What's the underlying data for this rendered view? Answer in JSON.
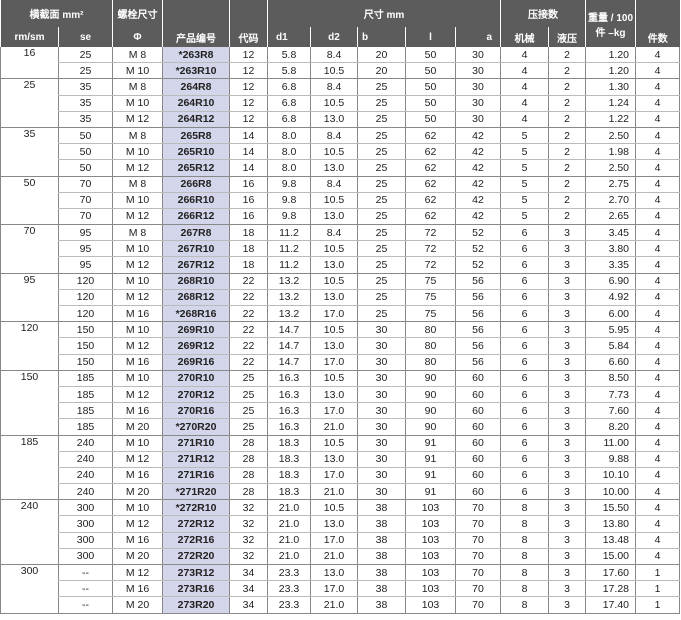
{
  "header": {
    "cross_section": "横截面 mm²",
    "bolt": "螺栓尺寸",
    "dims": "尺寸 mm",
    "crimps": "压接数",
    "weight": "重量 / 100 件 –kg",
    "mm_sm": "rm/sm",
    "se": "se",
    "phi": "Φ",
    "product_no": "产品编号",
    "code": "代码",
    "d1": "d1",
    "d2": "d2",
    "b": "b",
    "l": "l",
    "a": "a",
    "mech": "机械",
    "hydr": "液压",
    "pieces": "件数"
  },
  "groups": [
    {
      "mm": "16",
      "rows": [
        [
          "25",
          "M 8",
          "*263R8",
          "12",
          "5.8",
          "8.4",
          "20",
          "50",
          "30",
          "4",
          "2",
          "1.20",
          "4"
        ],
        [
          "25",
          "M 10",
          "*263R10",
          "12",
          "5.8",
          "10.5",
          "20",
          "50",
          "30",
          "4",
          "2",
          "1.20",
          "4"
        ]
      ]
    },
    {
      "mm": "25",
      "rows": [
        [
          "35",
          "M 8",
          "264R8",
          "12",
          "6.8",
          "8.4",
          "25",
          "50",
          "30",
          "4",
          "2",
          "1.30",
          "4"
        ],
        [
          "35",
          "M 10",
          "264R10",
          "12",
          "6.8",
          "10.5",
          "25",
          "50",
          "30",
          "4",
          "2",
          "1.24",
          "4"
        ],
        [
          "35",
          "M 12",
          "264R12",
          "12",
          "6.8",
          "13.0",
          "25",
          "50",
          "30",
          "4",
          "2",
          "1.22",
          "4"
        ]
      ]
    },
    {
      "mm": "35",
      "rows": [
        [
          "50",
          "M 8",
          "265R8",
          "14",
          "8.0",
          "8.4",
          "25",
          "62",
          "42",
          "5",
          "2",
          "2.50",
          "4"
        ],
        [
          "50",
          "M 10",
          "265R10",
          "14",
          "8.0",
          "10.5",
          "25",
          "62",
          "42",
          "5",
          "2",
          "1.98",
          "4"
        ],
        [
          "50",
          "M 12",
          "265R12",
          "14",
          "8.0",
          "13.0",
          "25",
          "62",
          "42",
          "5",
          "2",
          "2.50",
          "4"
        ]
      ]
    },
    {
      "mm": "50",
      "rows": [
        [
          "70",
          "M 8",
          "266R8",
          "16",
          "9.8",
          "8.4",
          "25",
          "62",
          "42",
          "5",
          "2",
          "2.75",
          "4"
        ],
        [
          "70",
          "M 10",
          "266R10",
          "16",
          "9.8",
          "10.5",
          "25",
          "62",
          "42",
          "5",
          "2",
          "2.70",
          "4"
        ],
        [
          "70",
          "M 12",
          "266R12",
          "16",
          "9.8",
          "13.0",
          "25",
          "62",
          "42",
          "5",
          "2",
          "2.65",
          "4"
        ]
      ]
    },
    {
      "mm": "70",
      "rows": [
        [
          "95",
          "M 8",
          "267R8",
          "18",
          "11.2",
          "8.4",
          "25",
          "72",
          "52",
          "6",
          "3",
          "3.45",
          "4"
        ],
        [
          "95",
          "M 10",
          "267R10",
          "18",
          "11.2",
          "10.5",
          "25",
          "72",
          "52",
          "6",
          "3",
          "3.80",
          "4"
        ],
        [
          "95",
          "M 12",
          "267R12",
          "18",
          "11.2",
          "13.0",
          "25",
          "72",
          "52",
          "6",
          "3",
          "3.35",
          "4"
        ]
      ]
    },
    {
      "mm": "95",
      "rows": [
        [
          "120",
          "M 10",
          "268R10",
          "22",
          "13.2",
          "10.5",
          "25",
          "75",
          "56",
          "6",
          "3",
          "6.90",
          "4"
        ],
        [
          "120",
          "M 12",
          "268R12",
          "22",
          "13.2",
          "13.0",
          "25",
          "75",
          "56",
          "6",
          "3",
          "4.92",
          "4"
        ],
        [
          "120",
          "M 16",
          "*268R16",
          "22",
          "13.2",
          "17.0",
          "25",
          "75",
          "56",
          "6",
          "3",
          "6.00",
          "4"
        ]
      ]
    },
    {
      "mm": "120",
      "rows": [
        [
          "150",
          "M 10",
          "269R10",
          "22",
          "14.7",
          "10.5",
          "30",
          "80",
          "56",
          "6",
          "3",
          "5.95",
          "4"
        ],
        [
          "150",
          "M 12",
          "269R12",
          "22",
          "14.7",
          "13.0",
          "30",
          "80",
          "56",
          "6",
          "3",
          "5.84",
          "4"
        ],
        [
          "150",
          "M 16",
          "269R16",
          "22",
          "14.7",
          "17.0",
          "30",
          "80",
          "56",
          "6",
          "3",
          "6.60",
          "4"
        ]
      ]
    },
    {
      "mm": "150",
      "rows": [
        [
          "185",
          "M 10",
          "270R10",
          "25",
          "16.3",
          "10.5",
          "30",
          "90",
          "60",
          "6",
          "3",
          "8.50",
          "4"
        ],
        [
          "185",
          "M 12",
          "270R12",
          "25",
          "16.3",
          "13.0",
          "30",
          "90",
          "60",
          "6",
          "3",
          "7.73",
          "4"
        ],
        [
          "185",
          "M 16",
          "270R16",
          "25",
          "16.3",
          "17.0",
          "30",
          "90",
          "60",
          "6",
          "3",
          "7.60",
          "4"
        ],
        [
          "185",
          "M 20",
          "*270R20",
          "25",
          "16.3",
          "21.0",
          "30",
          "90",
          "60",
          "6",
          "3",
          "8.20",
          "4"
        ]
      ]
    },
    {
      "mm": "185",
      "rows": [
        [
          "240",
          "M 10",
          "271R10",
          "28",
          "18.3",
          "10.5",
          "30",
          "91",
          "60",
          "6",
          "3",
          "11.00",
          "4"
        ],
        [
          "240",
          "M 12",
          "271R12",
          "28",
          "18.3",
          "13.0",
          "30",
          "91",
          "60",
          "6",
          "3",
          "9.88",
          "4"
        ],
        [
          "240",
          "M 16",
          "271R16",
          "28",
          "18.3",
          "17.0",
          "30",
          "91",
          "60",
          "6",
          "3",
          "10.10",
          "4"
        ],
        [
          "240",
          "M 20",
          "*271R20",
          "28",
          "18.3",
          "21.0",
          "30",
          "91",
          "60",
          "6",
          "3",
          "10.00",
          "4"
        ]
      ]
    },
    {
      "mm": "240",
      "rows": [
        [
          "300",
          "M 10",
          "*272R10",
          "32",
          "21.0",
          "10.5",
          "38",
          "103",
          "70",
          "8",
          "3",
          "15.50",
          "4"
        ],
        [
          "300",
          "M 12",
          "272R12",
          "32",
          "21.0",
          "13.0",
          "38",
          "103",
          "70",
          "8",
          "3",
          "13.80",
          "4"
        ],
        [
          "300",
          "M 16",
          "272R16",
          "32",
          "21.0",
          "17.0",
          "38",
          "103",
          "70",
          "8",
          "3",
          "13.48",
          "4"
        ],
        [
          "300",
          "M 20",
          "272R20",
          "32",
          "21.0",
          "21.0",
          "38",
          "103",
          "70",
          "8",
          "3",
          "15.00",
          "4"
        ]
      ]
    },
    {
      "mm": "300",
      "rows": [
        [
          "--",
          "M 12",
          "273R12",
          "34",
          "23.3",
          "13.0",
          "38",
          "103",
          "70",
          "8",
          "3",
          "17.60",
          "1"
        ],
        [
          "--",
          "M 16",
          "273R16",
          "34",
          "23.3",
          "17.0",
          "38",
          "103",
          "70",
          "8",
          "3",
          "17.28",
          "1"
        ],
        [
          "--",
          "M 20",
          "273R20",
          "34",
          "23.3",
          "21.0",
          "38",
          "103",
          "70",
          "8",
          "3",
          "17.40",
          "1"
        ]
      ]
    }
  ]
}
